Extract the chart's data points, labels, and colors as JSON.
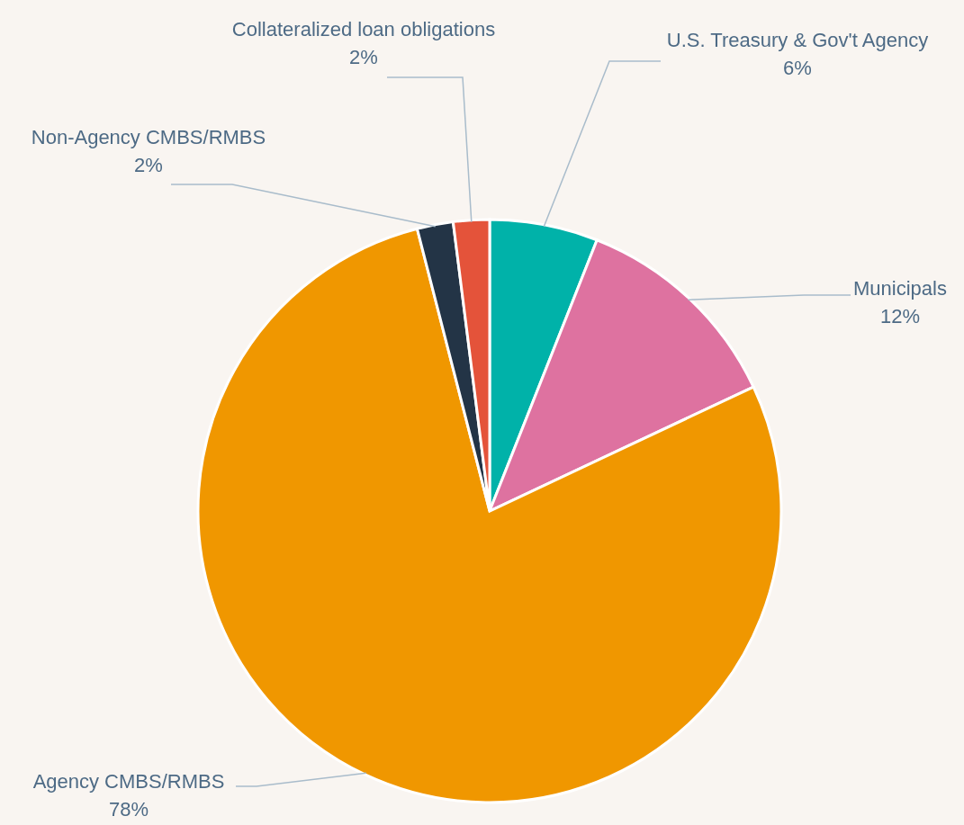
{
  "chart_data": {
    "type": "pie",
    "categories": [
      "U.S. Treasury & Gov't Agency",
      "Municipals",
      "Agency CMBS/RMBS",
      "Non-Agency CMBS/RMBS",
      "Collateralized loan obligations"
    ],
    "values": [
      6,
      12,
      78,
      2,
      2
    ],
    "colors": [
      "#00b2a9",
      "#de72a0",
      "#f09700",
      "#233446",
      "#e4533a"
    ],
    "value_labels": [
      "6%",
      "12%",
      "78%",
      "2%",
      "2%"
    ]
  }
}
